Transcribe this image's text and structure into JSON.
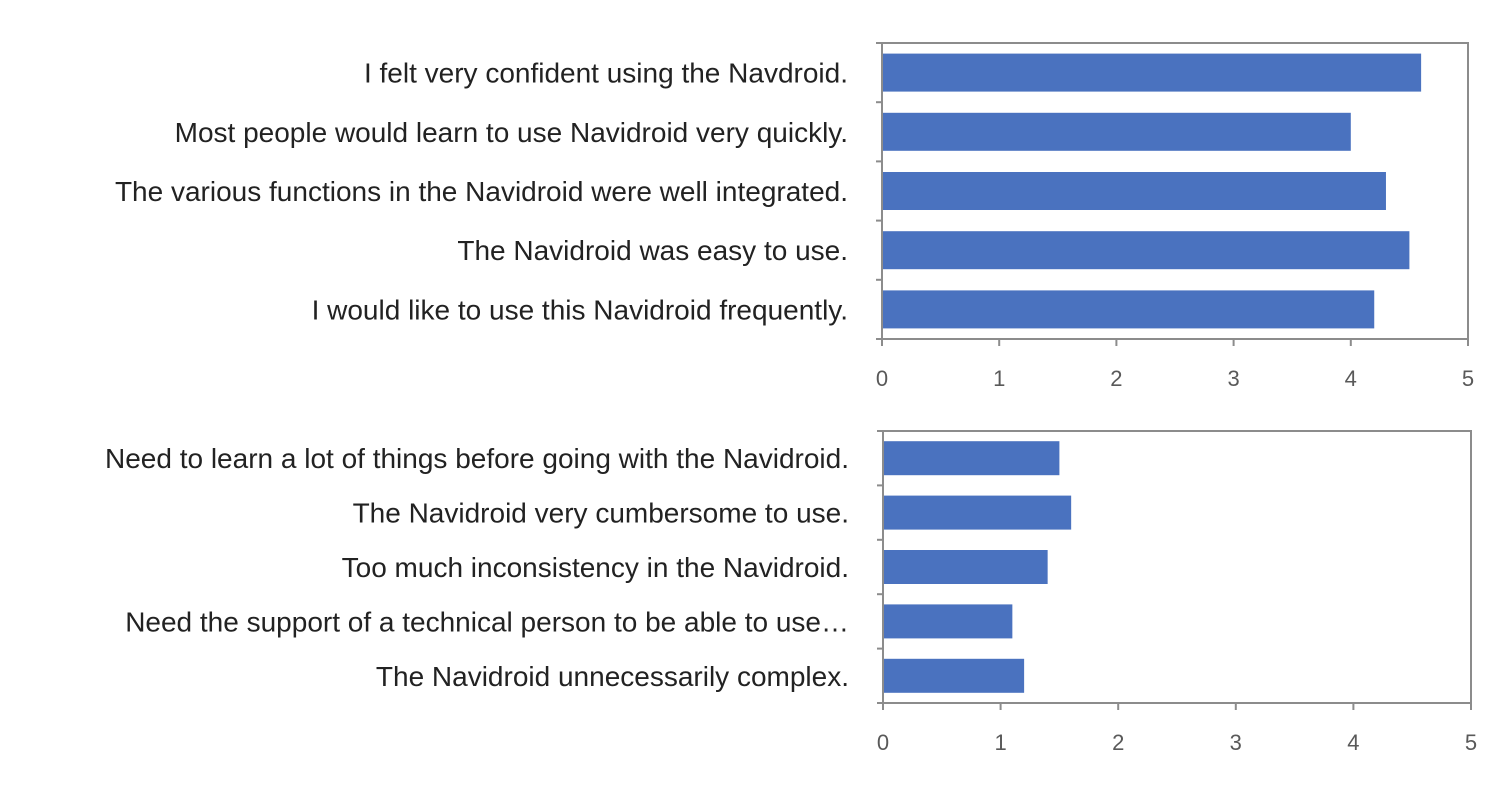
{
  "chart_data": [
    {
      "type": "bar",
      "orientation": "horizontal",
      "categories": [
        "I felt very confident using the Navdroid.",
        "Most people would learn to use Navidroid very quickly.",
        "The various functions in the Navidroid were well integrated.",
        "The Navidroid was easy to use.",
        "I would like to use this Navidroid frequently."
      ],
      "values": [
        4.6,
        4.0,
        4.3,
        4.5,
        4.2
      ],
      "xlim": [
        0,
        5
      ],
      "ticks": [
        "0",
        "1",
        "2",
        "3",
        "4",
        "5"
      ],
      "bar_color": "#4A72BF",
      "grid": false
    },
    {
      "type": "bar",
      "orientation": "horizontal",
      "categories": [
        "Need to learn a lot of things before going with the Navidroid.",
        "The Navidroid very cumbersome to use.",
        "Too much inconsistency in the Navidroid.",
        "Need the support of a technical person to be able to use…",
        "The Navidroid unnecessarily complex."
      ],
      "values": [
        1.5,
        1.6,
        1.4,
        1.1,
        1.2
      ],
      "xlim": [
        0,
        5
      ],
      "ticks": [
        "0",
        "1",
        "2",
        "3",
        "4",
        "5"
      ],
      "bar_color": "#4A72BF",
      "grid": false
    }
  ]
}
